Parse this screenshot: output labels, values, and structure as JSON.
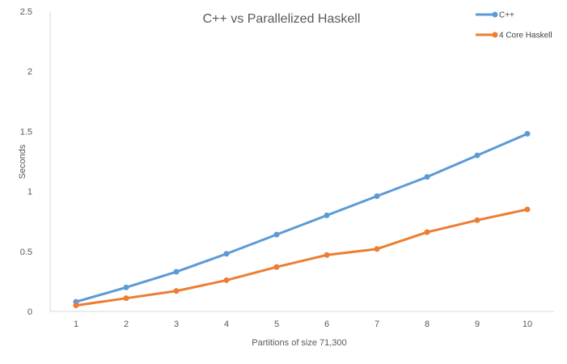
{
  "chart_data": {
    "type": "line",
    "title": "C++ vs Parallelized Haskell",
    "xlabel": "Partitions of size 71,300",
    "ylabel": "Seconds",
    "categories": [
      "1",
      "2",
      "3",
      "4",
      "5",
      "6",
      "7",
      "8",
      "9",
      "10"
    ],
    "ylim": [
      0,
      2.5
    ],
    "yticks": [
      "0",
      "0.5",
      "1",
      "1.5",
      "2",
      "2.5"
    ],
    "grid": false,
    "legend_position": "top-right",
    "series": [
      {
        "name": "C++",
        "color": "#5b9bd5",
        "values": [
          0.08,
          0.2,
          0.33,
          0.48,
          0.64,
          0.8,
          0.96,
          1.12,
          1.3,
          1.48
        ]
      },
      {
        "name": "4 Core Haskell",
        "color": "#ed7d31",
        "values": [
          0.05,
          0.11,
          0.17,
          0.26,
          0.37,
          0.47,
          0.52,
          0.66,
          0.76,
          0.85
        ]
      }
    ]
  }
}
